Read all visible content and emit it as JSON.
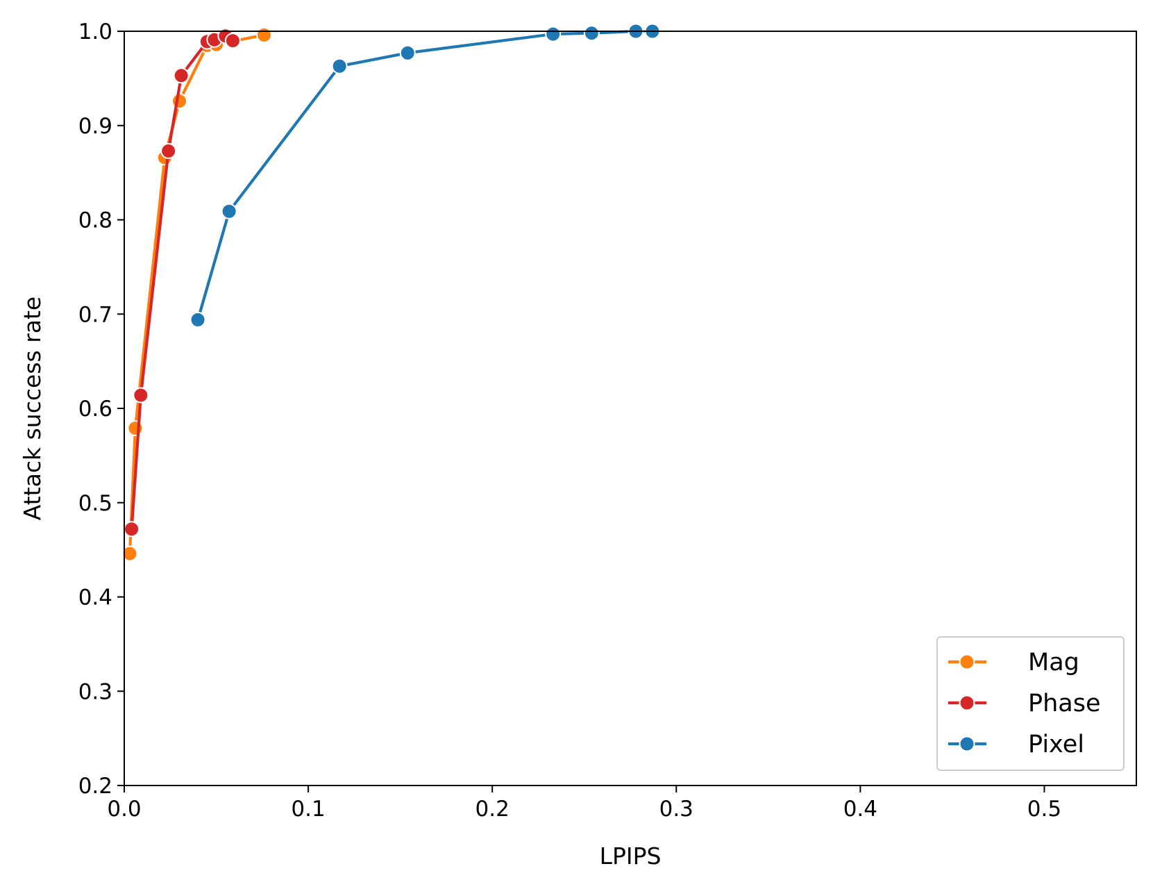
{
  "chart_data": {
    "type": "line",
    "title": "",
    "xlabel": "LPIPS",
    "ylabel": "Attack success rate",
    "xlim": [
      0.0,
      0.55
    ],
    "ylim": [
      0.2,
      1.0
    ],
    "xticks": [
      0.0,
      0.1,
      0.2,
      0.3,
      0.4,
      0.5
    ],
    "xtick_labels": [
      "0.0",
      "0.1",
      "0.2",
      "0.3",
      "0.4",
      "0.5"
    ],
    "yticks": [
      0.2,
      0.3,
      0.4,
      0.5,
      0.6,
      0.7,
      0.8,
      0.9,
      1.0
    ],
    "ytick_labels": [
      "0.2",
      "0.3",
      "0.4",
      "0.5",
      "0.6",
      "0.7",
      "0.8",
      "0.9",
      "1.0"
    ],
    "grid": false,
    "legend_position": "lower-right",
    "series": [
      {
        "name": "Mag",
        "color": "#ff7f0e",
        "marker": "circle",
        "x": [
          0.003,
          0.006,
          0.022,
          0.03,
          0.045,
          0.05,
          0.076
        ],
        "y": [
          0.446,
          0.579,
          0.866,
          0.926,
          0.985,
          0.986,
          0.996
        ]
      },
      {
        "name": "Phase",
        "color": "#d62728",
        "marker": "circle",
        "x": [
          0.004,
          0.009,
          0.024,
          0.031,
          0.045,
          0.049,
          0.055,
          0.059
        ],
        "y": [
          0.472,
          0.614,
          0.873,
          0.953,
          0.989,
          0.991,
          0.995,
          0.99
        ]
      },
      {
        "name": "Pixel",
        "color": "#1f77b4",
        "marker": "circle",
        "x": [
          0.04,
          0.057,
          0.117,
          0.154,
          0.233,
          0.254,
          0.278,
          0.287
        ],
        "y": [
          0.694,
          0.809,
          0.963,
          0.977,
          0.997,
          0.998,
          1.0,
          1.0
        ]
      }
    ]
  }
}
